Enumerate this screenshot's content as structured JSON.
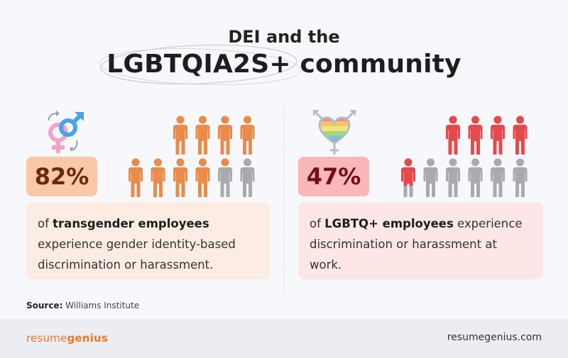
{
  "title": {
    "line1": "DEI and the",
    "line2": "LGBTQIA2S+ community"
  },
  "left_panel": {
    "icon": "transgender-symbol-icon",
    "percent": "82%",
    "percent_value": 82,
    "figures_total": 10,
    "figures_filled": 8.2,
    "colors": {
      "filled": "#eb8a4a",
      "empty": "#a9aaad",
      "box": "#f9c8a9",
      "text": "#6b2a0c",
      "desc_bg": "#fdece3"
    },
    "desc_bold": "transgender employees",
    "desc_pre": "of ",
    "desc_post": " experience gender identity-based discrimination or harassment."
  },
  "right_panel": {
    "icon": "lgbtq-heart-symbol-icon",
    "percent": "47%",
    "percent_value": 47,
    "figures_total": 10,
    "figures_filled": 4.7,
    "colors": {
      "filled": "#e8484b",
      "empty": "#a9aaad",
      "box": "#f9b7b9",
      "text": "#6e1215",
      "desc_bg": "#fde6e6"
    },
    "desc_bold": "LGBTQ+ employees",
    "desc_pre": "of ",
    "desc_post": " experience discrimination or harassment at work."
  },
  "source": {
    "label": "Source:",
    "text": " Williams Institute"
  },
  "footer": {
    "brand_part1": "resume",
    "brand_part2": "genius",
    "site": "resumegenius.com"
  }
}
